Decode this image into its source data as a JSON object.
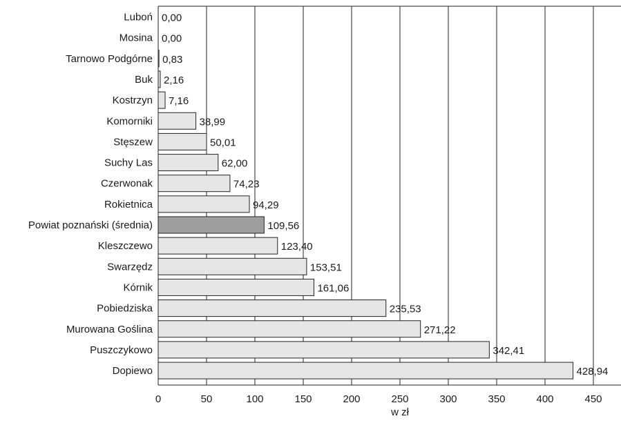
{
  "chart_data": {
    "type": "bar",
    "orientation": "horizontal",
    "xlabel": "w zł",
    "ylabel": "",
    "xlim": [
      0,
      475
    ],
    "xticks": [
      0,
      50,
      100,
      150,
      200,
      250,
      300,
      350,
      400,
      450
    ],
    "xtick_labels": [
      "0",
      "50",
      "100",
      "150",
      "200",
      "250",
      "300",
      "350",
      "400",
      "450"
    ],
    "grid": "vertical",
    "categories": [
      "Luboń",
      "Mosina",
      "Tarnowo Podgórne",
      "Buk",
      "Kostrzyn",
      "Komorniki",
      "Stęszew",
      "Suchy Las",
      "Czerwonak",
      "Rokietnica",
      "Powiat poznański (średnia)",
      "Kleszczewo",
      "Swarzędz",
      "Kórnik",
      "Pobiedziska",
      "Murowana Goślina",
      "Puszczykowo",
      "Dopiewo"
    ],
    "values": [
      0.0,
      0.0,
      0.83,
      2.16,
      7.16,
      38.99,
      50.01,
      62.0,
      74.23,
      94.29,
      109.56,
      123.4,
      153.51,
      161.06,
      235.53,
      271.22,
      342.41,
      428.94
    ],
    "value_labels": [
      "0,00",
      "0,00",
      "0,83",
      "2,16",
      "7,16",
      "38,99",
      "50,01",
      "62,00",
      "74,23",
      "94,29",
      "109,56",
      "123,40",
      "153,51",
      "161,06",
      "235,53",
      "271,22",
      "342,41",
      "428,94"
    ],
    "highlight_category": "Powiat poznański (średnia)",
    "colors": {
      "bar_fill": "#e6e6e6",
      "highlight_fill": "#9e9e9e",
      "bar_stroke": "#222222",
      "gridline": "#222222",
      "text": "#1a1a1a"
    }
  }
}
